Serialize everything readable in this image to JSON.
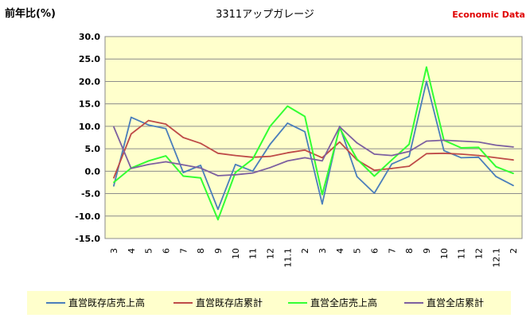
{
  "chart_data": {
    "type": "line",
    "title": "3311アップガレージ",
    "ylabel": "前年比(%)",
    "brand": "Economic Data",
    "brand_color": "#e00000",
    "plot_background": "#ffffcc",
    "legend_background": "#ffffcc",
    "legend_position": "bottom",
    "grid": true,
    "ylim": [
      -15,
      30
    ],
    "yticks": [
      "30.0",
      "25.0",
      "20.0",
      "15.0",
      "10.0",
      "5.0",
      "0.0",
      "-5.0",
      "-10.0",
      "-15.0"
    ],
    "categories": [
      "3",
      "4",
      "5",
      "6",
      "7",
      "8",
      "9",
      "10",
      "11",
      "12",
      "11.1",
      "2",
      "3",
      "4",
      "5",
      "6",
      "7",
      "8",
      "9",
      "10",
      "11",
      "12",
      "12.1",
      "2"
    ],
    "series": [
      {
        "name": "直営既存店売上高",
        "color": "#4a7ebb",
        "values": [
          -3.3,
          12.0,
          10.3,
          9.5,
          -0.3,
          1.3,
          -8.5,
          1.5,
          0.0,
          6.0,
          10.7,
          8.8,
          -7.3,
          10.0,
          -1.2,
          -4.9,
          1.6,
          3.3,
          20.0,
          4.6,
          3.0,
          3.1,
          -1.2,
          -3.2
        ]
      },
      {
        "name": "直営既存店累計",
        "color": "#be4b48",
        "values": [
          -1.5,
          8.3,
          11.3,
          10.5,
          7.5,
          6.2,
          4.0,
          3.5,
          3.1,
          3.3,
          4.1,
          4.7,
          3.0,
          6.5,
          2.5,
          0.2,
          0.6,
          1.1,
          3.9,
          4.0,
          3.8,
          3.5,
          3.0,
          2.5
        ]
      },
      {
        "name": "直営全店売上高",
        "color": "#33ff33",
        "values": [
          -2.5,
          0.7,
          2.3,
          3.4,
          -1.1,
          -1.5,
          -10.8,
          -0.3,
          2.7,
          10.0,
          14.5,
          12.2,
          -5.2,
          9.6,
          2.7,
          -1.1,
          2.5,
          6.0,
          23.2,
          6.9,
          5.2,
          5.3,
          1.0,
          -0.5
        ]
      },
      {
        "name": "直営全店累計",
        "color": "#7d60a0",
        "values": [
          9.9,
          0.6,
          1.5,
          2.1,
          1.4,
          0.7,
          -1.0,
          -0.8,
          -0.4,
          0.8,
          2.3,
          3.0,
          2.3,
          9.9,
          6.3,
          3.8,
          3.5,
          4.4,
          6.7,
          6.9,
          6.7,
          6.5,
          5.8,
          5.4
        ]
      }
    ]
  }
}
